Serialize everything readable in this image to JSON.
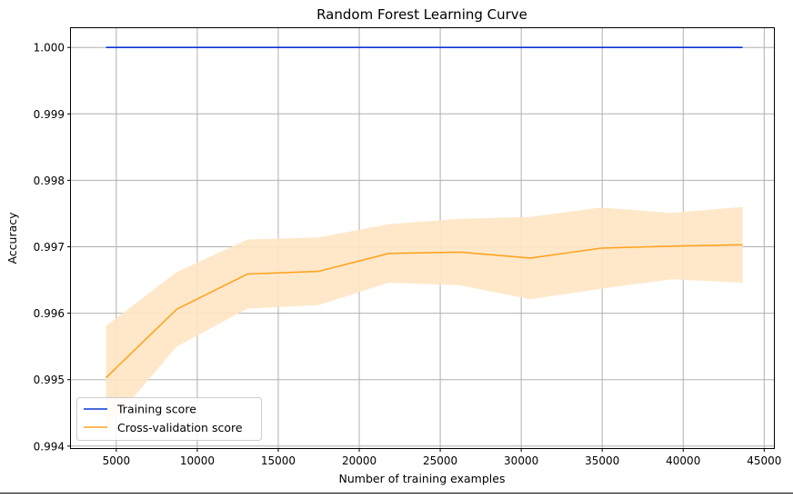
{
  "chart_data": {
    "type": "line",
    "title": "Random Forest Learning Curve",
    "xlabel": "Number of training examples",
    "ylabel": "Accuracy",
    "xlim": [
      2200,
      45600
    ],
    "ylim": [
      0.99397,
      1.00029
    ],
    "xticks": [
      5000,
      10000,
      15000,
      20000,
      25000,
      30000,
      35000,
      40000,
      45000
    ],
    "xtick_labels": [
      "5000",
      "10000",
      "15000",
      "20000",
      "25000",
      "30000",
      "35000",
      "40000",
      "45000"
    ],
    "yticks": [
      0.994,
      0.995,
      0.996,
      0.997,
      0.998,
      0.999,
      1.0
    ],
    "ytick_labels": [
      "0.994",
      "0.995",
      "0.996",
      "0.997",
      "0.998",
      "0.999",
      "1.000"
    ],
    "grid": true,
    "legend_position": "lower-left",
    "x": [
      4366,
      8733,
      13100,
      17466,
      21833,
      26200,
      30566,
      34933,
      39300,
      43666
    ],
    "series": [
      {
        "name": "Training score",
        "color": "#0a36d4",
        "values": [
          1.0,
          1.0,
          1.0,
          1.0,
          1.0,
          1.0,
          1.0,
          1.0,
          1.0,
          1.0
        ]
      },
      {
        "name": "Cross-validation score",
        "color": "#ffa31f",
        "band_color": "#ffe6c4",
        "values": [
          0.99503,
          0.99606,
          0.99659,
          0.99663,
          0.9969,
          0.99692,
          0.99683,
          0.99698,
          0.99701,
          0.99703
        ],
        "band_lower": [
          0.99425,
          0.9955,
          0.99607,
          0.99612,
          0.99646,
          0.99642,
          0.99621,
          0.99637,
          0.99651,
          0.99646
        ],
        "band_upper": [
          0.99581,
          0.99662,
          0.99711,
          0.99714,
          0.99734,
          0.99742,
          0.99745,
          0.99759,
          0.99751,
          0.9976
        ]
      }
    ]
  }
}
